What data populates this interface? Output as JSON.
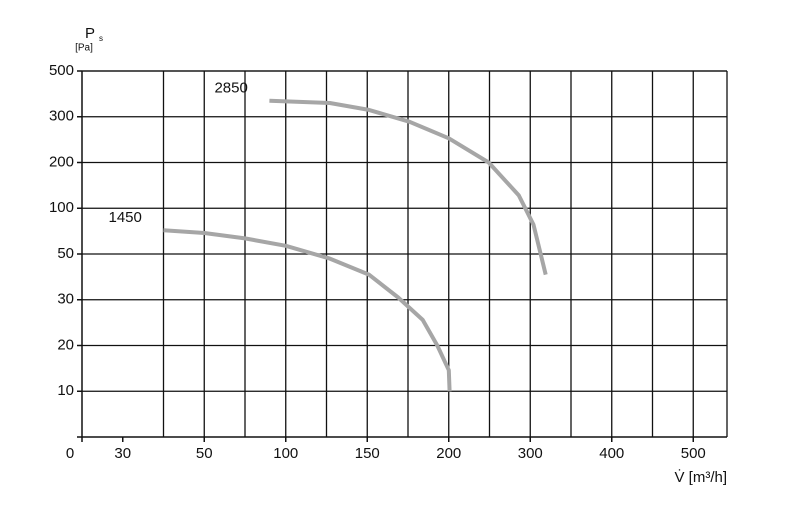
{
  "chart_data": {
    "type": "line",
    "y_label": {
      "symbol": "P",
      "subscript": "s",
      "unit": "[Pa]"
    },
    "x_label": "V̇ [m³/h]",
    "xlim": [
      0,
      540
    ],
    "xticks": [
      0,
      30,
      50,
      100,
      150,
      200,
      300,
      400,
      500
    ],
    "ylim": [
      0,
      500
    ],
    "yticks": [
      10,
      20,
      30,
      50,
      100,
      200,
      300,
      500
    ],
    "grid": true,
    "series": [
      {
        "name": "2850",
        "color": "#a6a6a6",
        "x": [
          90,
          127,
          151,
          176,
          200,
          249,
          286,
          304,
          319
        ],
        "values": [
          370,
          360,
          330,
          289,
          253,
          200,
          128,
          82,
          41
        ]
      },
      {
        "name": "1450",
        "color": "#a6a6a6",
        "x": [
          40,
          50,
          75,
          100,
          127,
          151,
          169,
          184,
          193,
          200,
          201
        ],
        "values": [
          76,
          73,
          67,
          59,
          48,
          41,
          31,
          25.6,
          20,
          14.6,
          10
        ]
      }
    ]
  }
}
